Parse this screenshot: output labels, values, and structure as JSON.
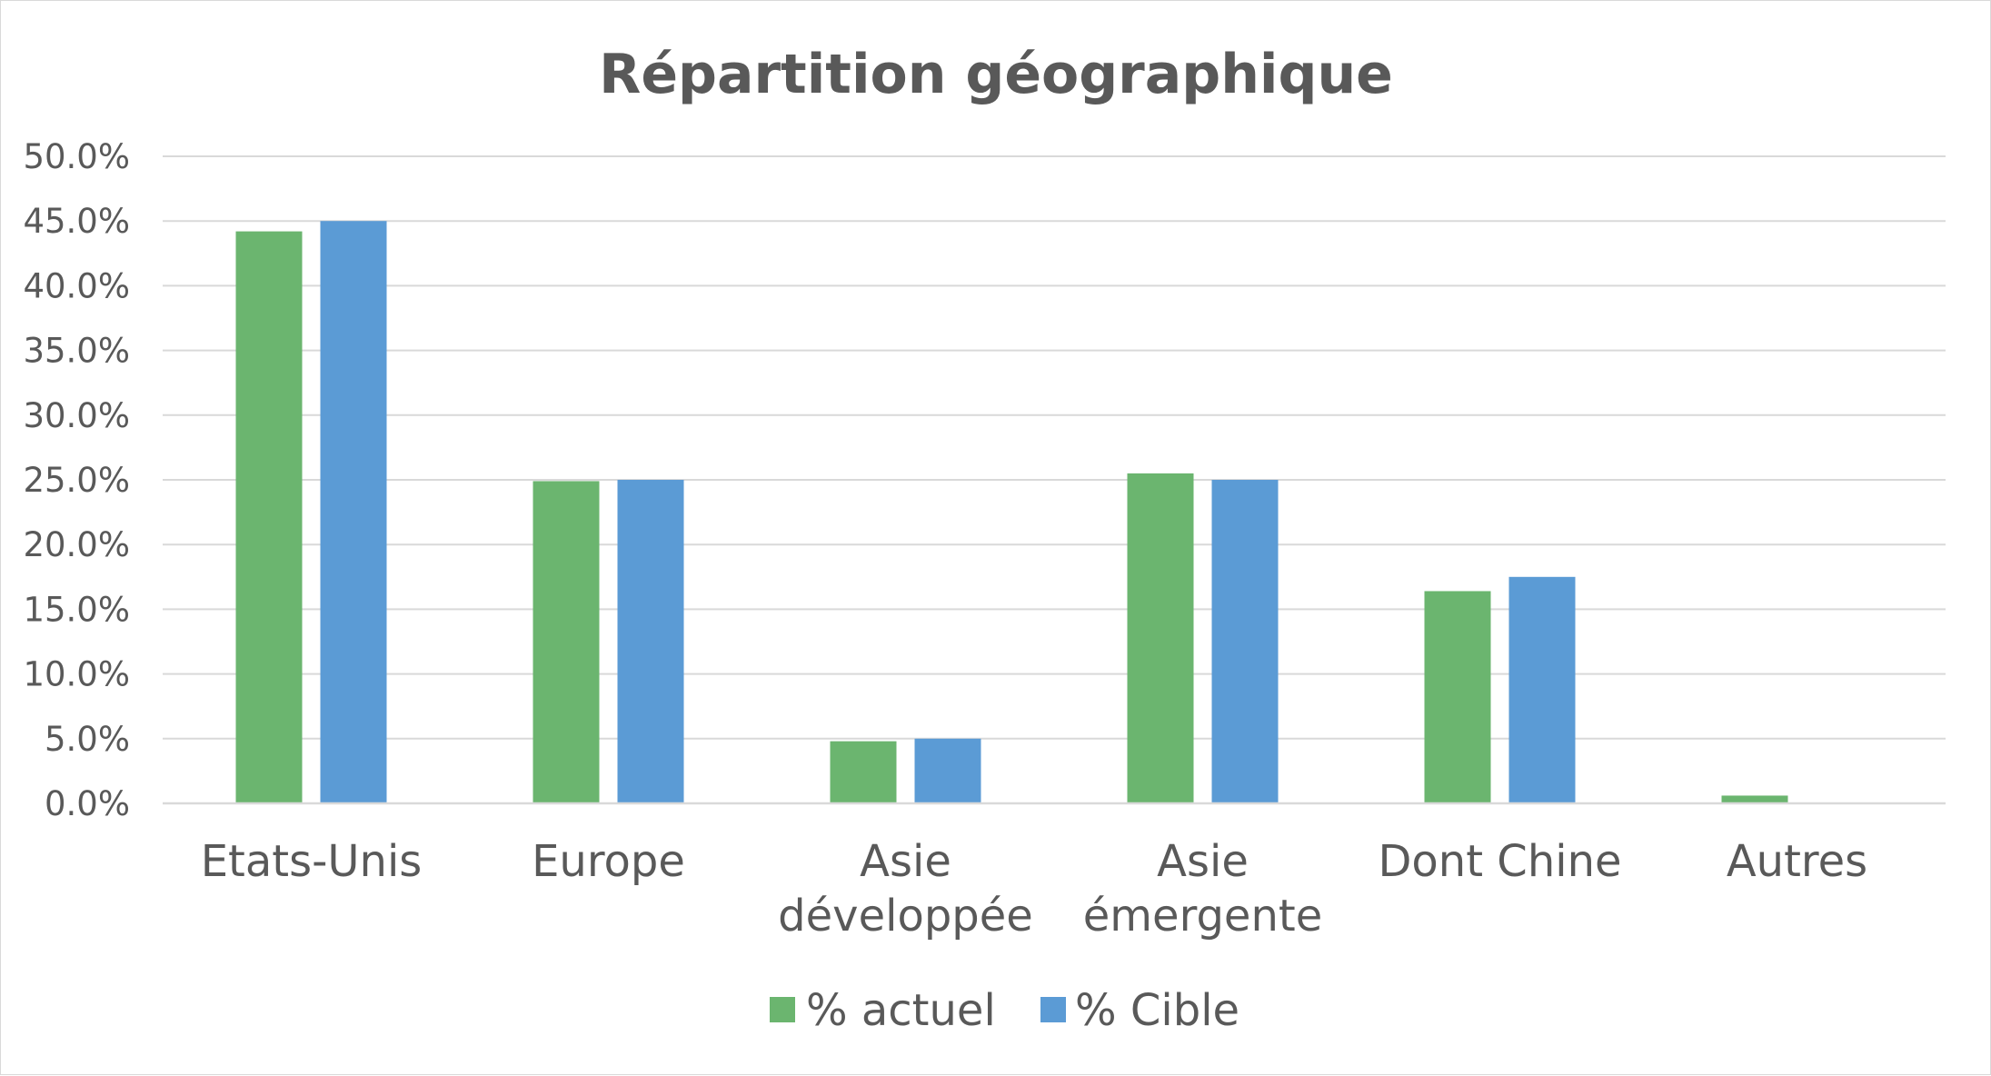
{
  "chart_data": {
    "type": "bar",
    "title": "Répartition géographique",
    "xlabel": "",
    "ylabel": "",
    "categories": [
      [
        "Etats-Unis"
      ],
      [
        "Europe"
      ],
      [
        "Asie",
        "développée"
      ],
      [
        "Asie",
        "émergente"
      ],
      [
        "Dont Chine"
      ],
      [
        "Autres"
      ]
    ],
    "series": [
      {
        "name": "% actuel",
        "color": "#6bb56f",
        "values": [
          44.2,
          24.9,
          4.8,
          25.5,
          16.4,
          0.6
        ]
      },
      {
        "name": "% Cible",
        "color": "#5b9bd5",
        "values": [
          45.0,
          25.0,
          5.0,
          25.0,
          17.5,
          0.0
        ]
      }
    ],
    "ylim": [
      0,
      50
    ],
    "yticks": [
      "0.0%",
      "5.0%",
      "10.0%",
      "15.0%",
      "20.0%",
      "25.0%",
      "30.0%",
      "35.0%",
      "40.0%",
      "45.0%",
      "50.0%"
    ],
    "grid": true,
    "legend": "bottom"
  }
}
